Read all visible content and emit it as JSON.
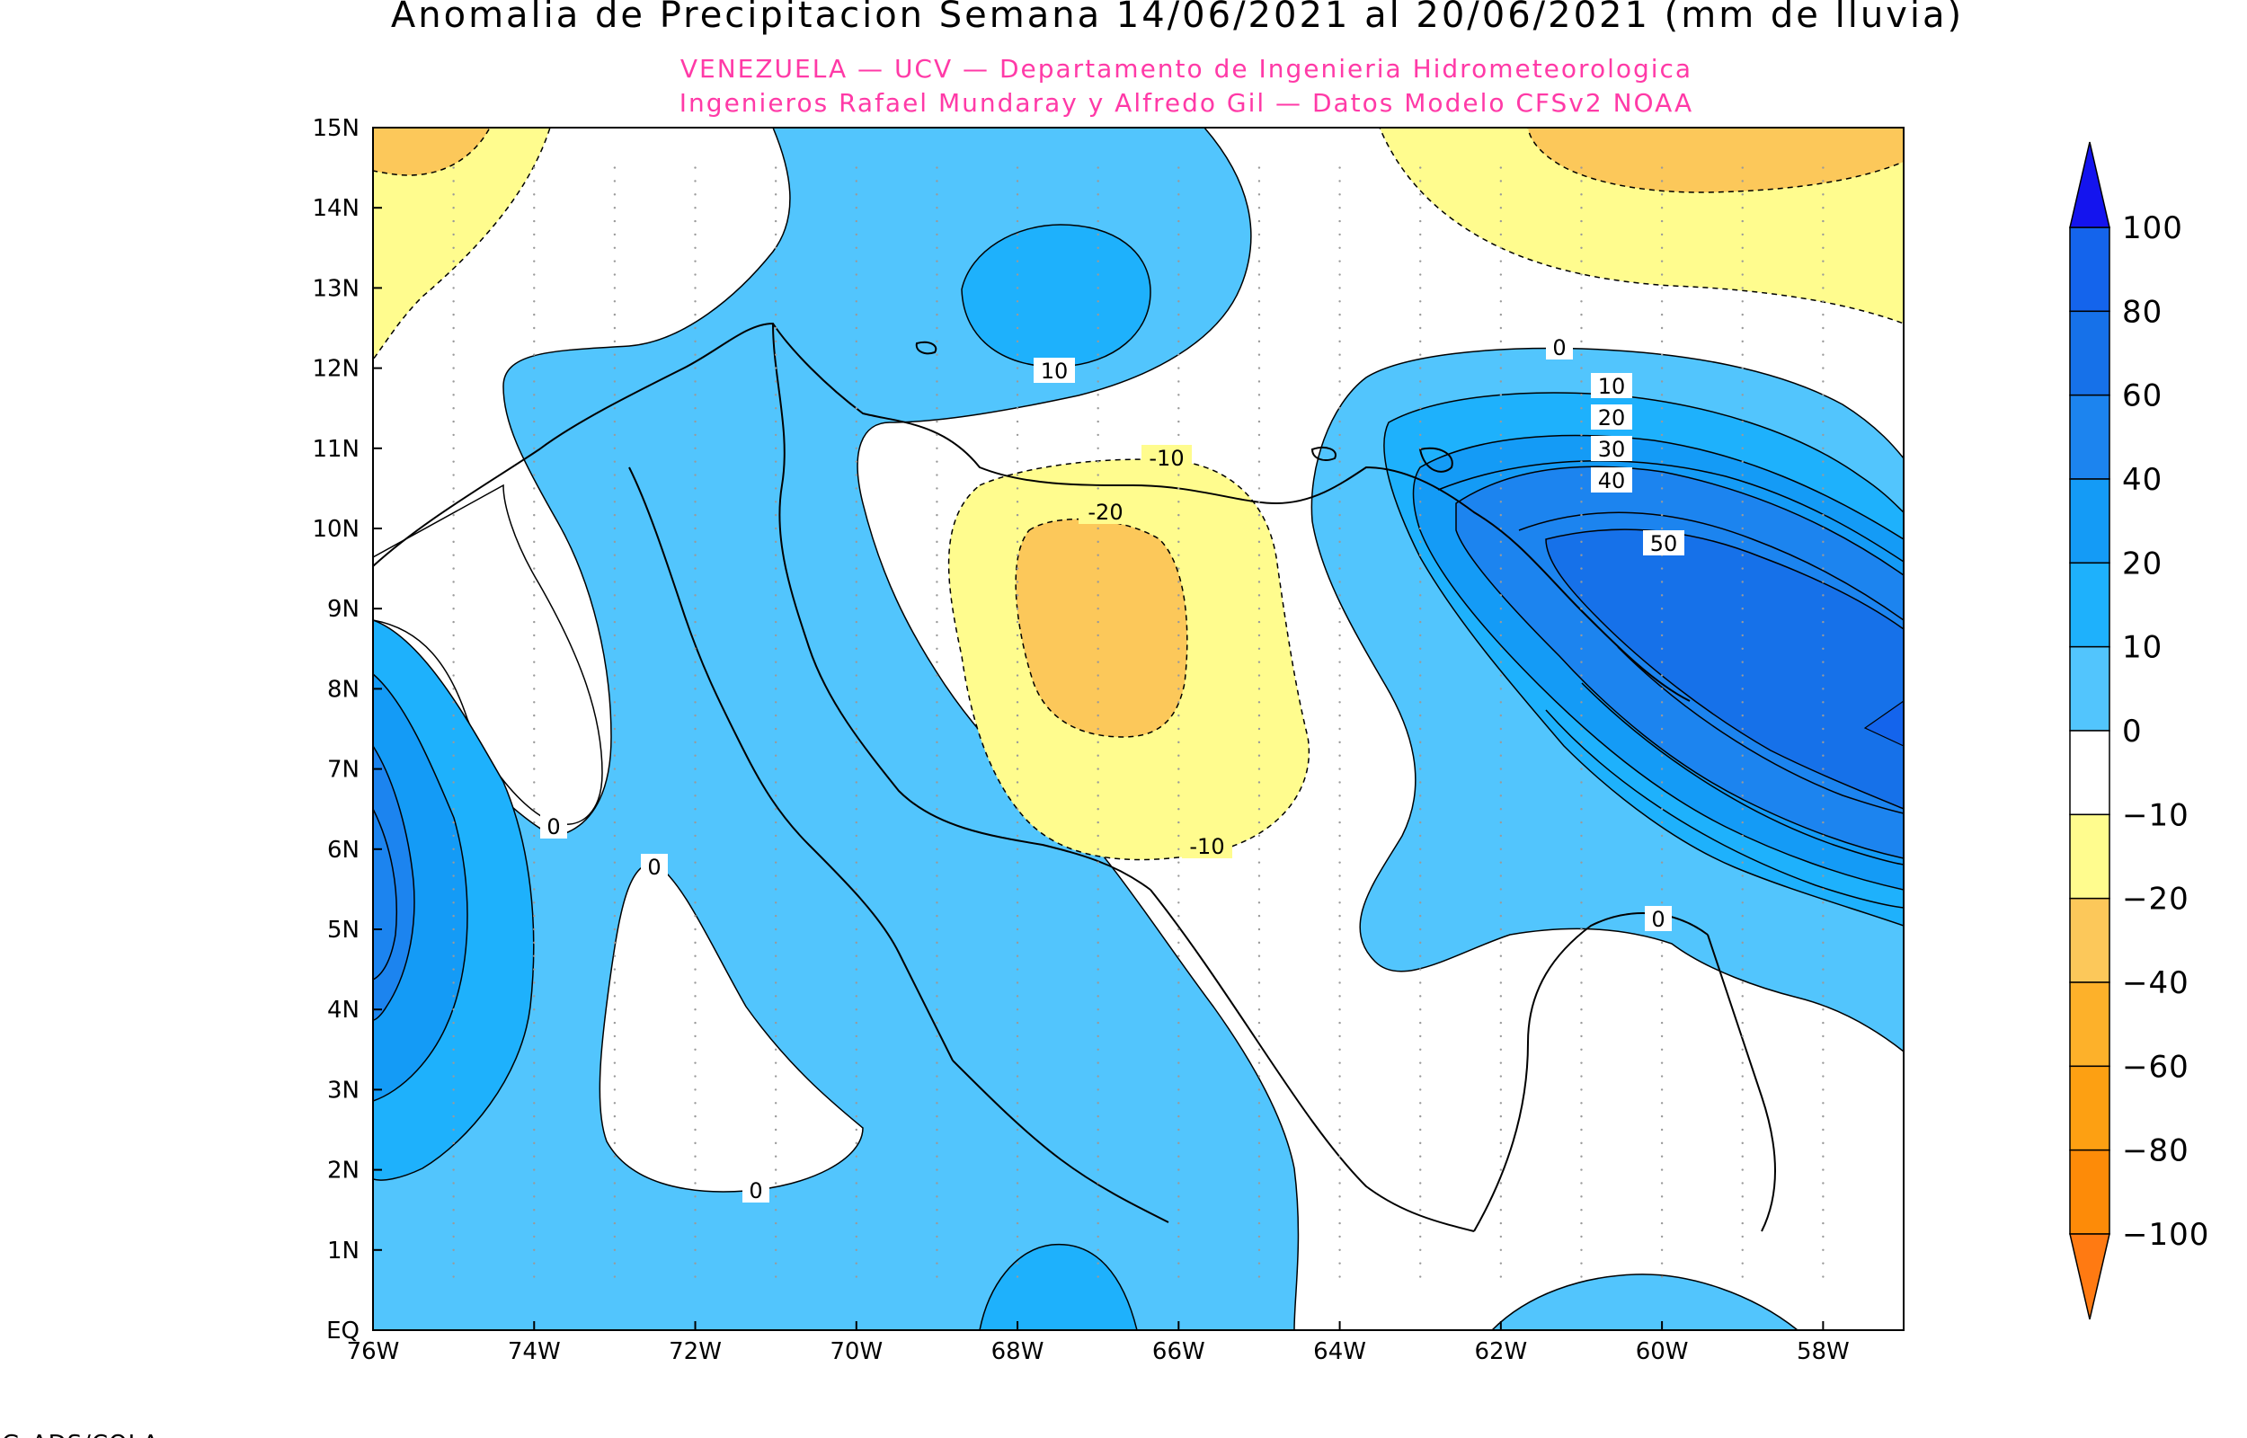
{
  "title": "Anomalia de Precipitacion Semana 14/06/2021 al 20/06/2021 (mm de lluvia)",
  "subtitle_line1": "VENEZUELA — UCV — Departamento de Ingenieria Hidrometeorologica",
  "subtitle_line2": "Ingenieros Rafael Mundaray y Alfredo Gil — Datos Modelo CFSv2 NOAA",
  "footer": "GrADS/COLA",
  "colors": {
    "title": "#000000",
    "subtitle": "#ff3aa7",
    "land_border": "#000000",
    "neg_10_20": "#fffc8e",
    "neg_20_40": "#fcc85a",
    "neg_40_60": "#fdb12a",
    "pos_0_10": "#52c5fd",
    "pos_10_20": "#1eb1fc",
    "pos_20_40": "#149bf6",
    "pos_40_60": "#1c84ef",
    "pos_60_80": "#1671e9",
    "neutral": "#ffffff"
  },
  "map": {
    "lon_range": [
      "76W",
      "57W"
    ],
    "lat_range": [
      "EQ",
      "15N"
    ],
    "lon_ticks": [
      "76W",
      "74W",
      "72W",
      "70W",
      "68W",
      "66W",
      "64W",
      "62W",
      "60W",
      "58W"
    ],
    "lat_ticks": [
      "EQ",
      "1N",
      "2N",
      "3N",
      "4N",
      "5N",
      "6N",
      "7N",
      "8N",
      "9N",
      "10N",
      "11N",
      "12N",
      "13N",
      "14N",
      "15N"
    ],
    "contour_labels": [
      "10",
      "-10",
      "-20",
      "-10",
      "0",
      "10",
      "20",
      "30",
      "40",
      "50",
      "0",
      "0",
      "0",
      "0"
    ]
  },
  "legend": {
    "labels": [
      "100",
      "80",
      "60",
      "40",
      "20",
      "10",
      "0",
      "−10",
      "−20",
      "−40",
      "−60",
      "−80",
      "−100"
    ],
    "colors": [
      "#1f4fe6",
      "#1464ec",
      "#1671e9",
      "#1c84ef",
      "#149bf6",
      "#1eb1fc",
      "#52c5fd",
      "#ffffff",
      "#fffc8e",
      "#fcc85a",
      "#fdb12a",
      "#fda012",
      "#fd8b08",
      "#fe7a1c"
    ],
    "top_arrow_color": "#1414ee",
    "bottom_arrow_color": "#ff7a12"
  },
  "chart_data": {
    "type": "heatmap",
    "title": "Anomalia de Precipitacion Semana 14/06/2021 al 20/06/2021 (mm de lluvia)",
    "variable": "precipitation anomaly",
    "units": "mm de lluvia",
    "period": "14/06/2021 al 20/06/2021",
    "xlim": [
      "76W",
      "57W"
    ],
    "ylim": [
      "EQ",
      "15N"
    ],
    "levels": [
      -100,
      -80,
      -60,
      -40,
      -20,
      -10,
      0,
      10,
      20,
      40,
      60,
      80,
      100
    ],
    "features": [
      {
        "kind": "negative maximum",
        "approx_center": [
          -67.0,
          8.6
        ],
        "min_range": "-40 to -20"
      },
      {
        "kind": "positive maximum",
        "approx_center": [
          -57.2,
          7.2
        ],
        "max_range": "60 to 80"
      },
      {
        "kind": "positive maximum",
        "approx_center": [
          -76.0,
          5.0
        ],
        "max_range": "20 to 40"
      },
      {
        "kind": "positive cell",
        "approx_center": [
          -66.8,
          13.3
        ],
        "max_range": "10 to 20"
      }
    ]
  }
}
